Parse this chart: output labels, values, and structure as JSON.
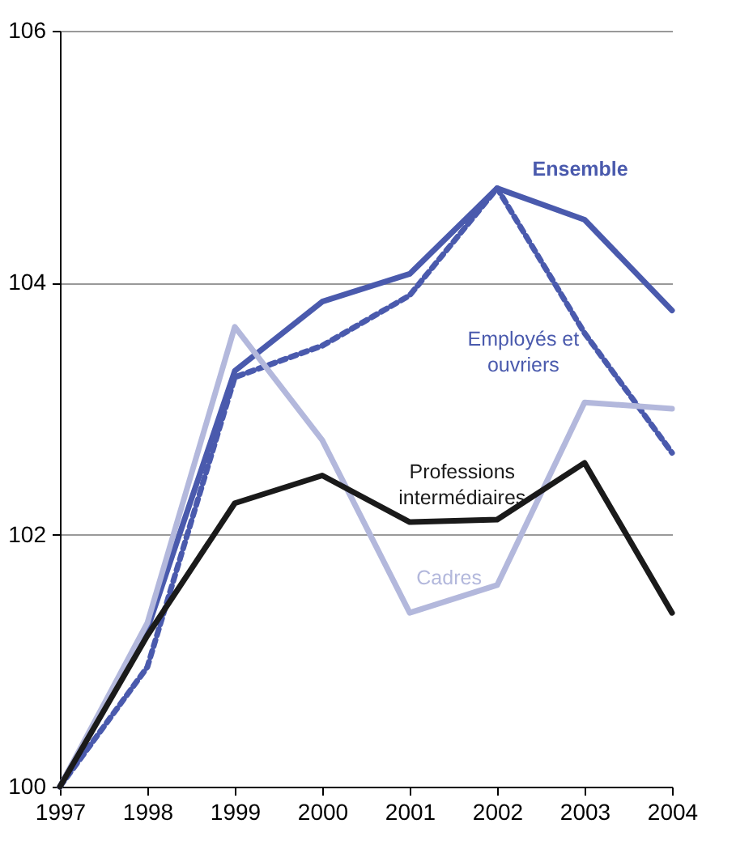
{
  "chart_data": {
    "type": "line",
    "x": [
      1997,
      1998,
      1999,
      2000,
      2001,
      2002,
      2003,
      2004
    ],
    "series": [
      {
        "name": "Ensemble",
        "color": "#4a5aad",
        "line_style": "solid",
        "values": [
          100,
          101.25,
          103.3,
          103.85,
          104.07,
          104.75,
          104.5,
          103.78
        ]
      },
      {
        "name": "Employés et ouvriers",
        "color": "#4a5aad",
        "line_style": "dashed",
        "values": [
          100,
          100.95,
          103.25,
          103.5,
          103.9,
          104.75,
          103.6,
          102.65
        ]
      },
      {
        "name": "Cadres",
        "color": "#b3b8dc",
        "line_style": "solid",
        "values": [
          100,
          101.3,
          103.65,
          102.75,
          101.38,
          101.6,
          103.05,
          103.0
        ]
      },
      {
        "name": "Professions intermédiaires",
        "color": "#1a1a1a",
        "line_style": "solid",
        "values": [
          100,
          101.2,
          102.25,
          102.47,
          102.1,
          102.12,
          102.57,
          101.38
        ]
      }
    ],
    "xlim": [
      1997,
      2004
    ],
    "xticks": [
      1997,
      1998,
      1999,
      2000,
      2001,
      2002,
      2003,
      2004
    ],
    "ylim": [
      100,
      106
    ],
    "yticks": [
      100,
      102,
      104,
      106
    ],
    "grid": "y",
    "legend": false,
    "marker": "none"
  }
}
